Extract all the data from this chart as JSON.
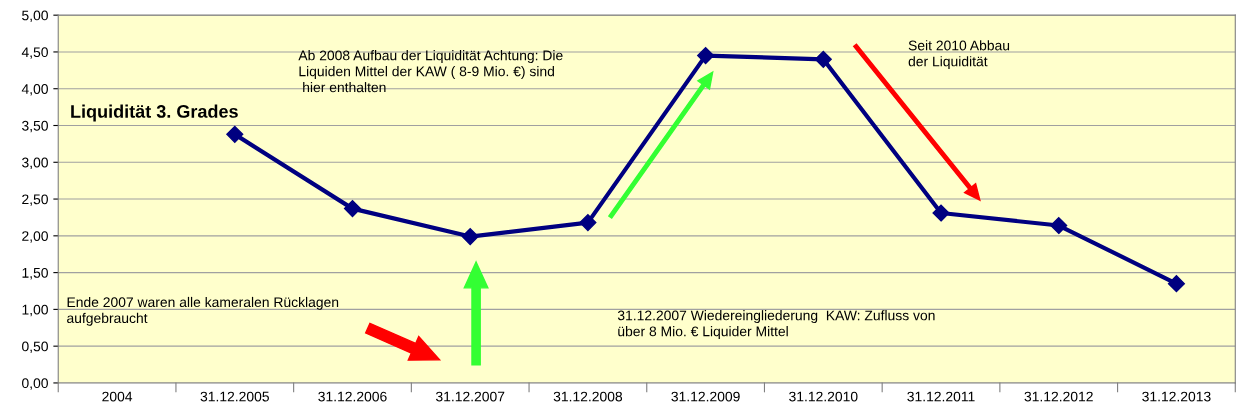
{
  "chart_data": {
    "type": "line",
    "title": "Liquidität 3. Grades",
    "categories": [
      "2004",
      "31.12.2005",
      "31.12.2006",
      "31.12.2007",
      "31.12.2008",
      "31.12.2009",
      "31.12.2010",
      "31.12.2011",
      "31.12.2012",
      "31.12.2013"
    ],
    "series": [
      {
        "color": "#000080",
        "values": [
          null,
          3.38,
          2.37,
          1.99,
          2.18,
          4.45,
          4.4,
          2.31,
          2.14,
          1.35
        ]
      }
    ],
    "ylim": [
      0,
      5
    ],
    "yticks": [
      {
        "value": 0,
        "label": "0,00"
      },
      {
        "value": 0.5,
        "label": "0,50"
      },
      {
        "value": 1,
        "label": "1,00"
      },
      {
        "value": 1.5,
        "label": "1,50"
      },
      {
        "value": 2,
        "label": "2,00"
      },
      {
        "value": 2.5,
        "label": "2,50"
      },
      {
        "value": 3,
        "label": "3,00"
      },
      {
        "value": 3.5,
        "label": "3,50"
      },
      {
        "value": 4,
        "label": "4,00"
      },
      {
        "value": 4.5,
        "label": "4,50"
      },
      {
        "value": 5,
        "label": "5,00"
      }
    ],
    "grid": "y",
    "marker": "diamond",
    "line_style": "solid",
    "legend": false,
    "annotations": [
      "Ab 2008 Aufbau der Liquidität Achtung: Die\nLiquiden Mittel der KAW ( 8-9 Mio. €) sind\n hier enthalten",
      "Seit 2010 Abbau\nder Liquidität",
      "Ende 2007 waren alle kameralen Rücklagen\naufgebraucht",
      "31.12.2007 Wiedereingliederung  KAW: Zufluss von\nüber 8 Mio. € Liquider Mittel"
    ]
  }
}
